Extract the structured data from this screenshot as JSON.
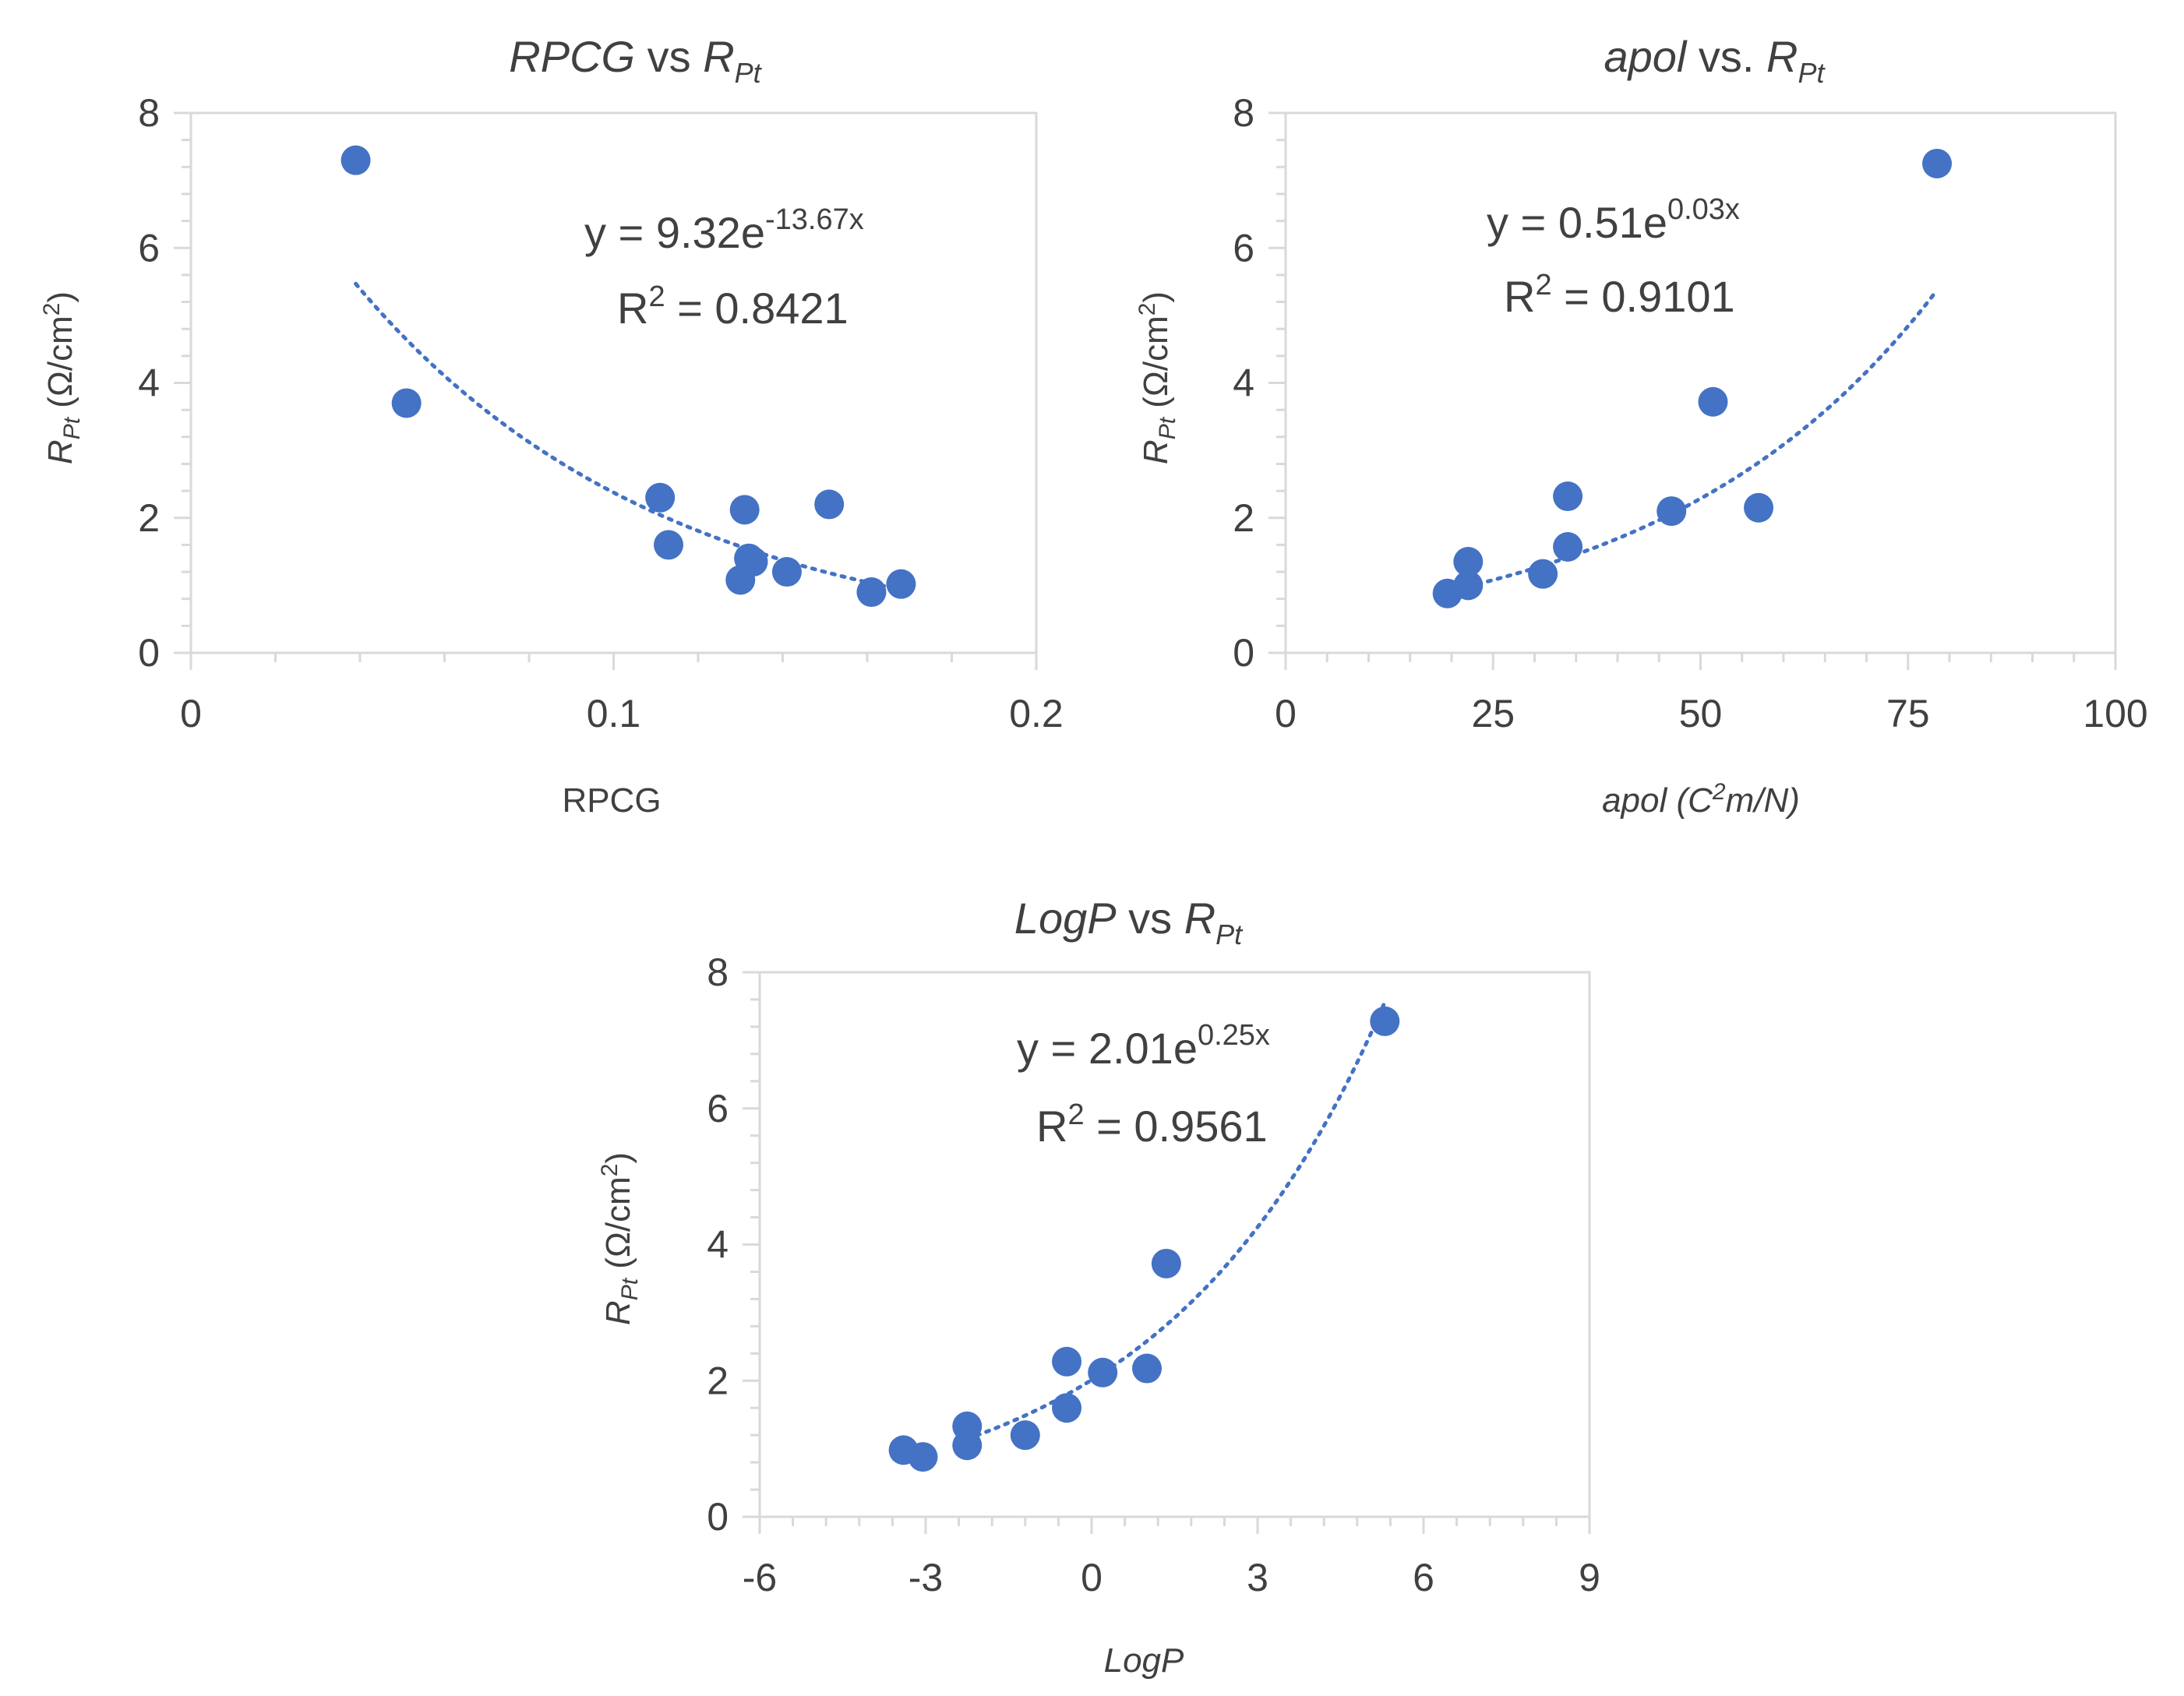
{
  "chart_data": [
    {
      "type": "scatter",
      "title": "RPCG vs R_Pt",
      "title_parts": {
        "a": "RPCG",
        "b": " vs ",
        "c": "R",
        "sub": "Pt"
      },
      "xlabel": "RPCG",
      "ylabel_parts": {
        "r": "R",
        "sub": "Pt",
        "unit": " (Ω/cm",
        "sup": "2",
        "close": ")"
      },
      "xlim": [
        0,
        0.2
      ],
      "ylim": [
        0,
        8
      ],
      "x_ticks": [
        "0",
        "0.1",
        "0.2"
      ],
      "y_ticks": [
        "0",
        "2",
        "4",
        "6",
        "8"
      ],
      "x_tick_values": [
        0,
        0.1,
        0.2
      ],
      "y_tick_values": [
        0,
        2,
        4,
        6,
        8
      ],
      "x": [
        0.039,
        0.051,
        0.111,
        0.113,
        0.13,
        0.131,
        0.132,
        0.133,
        0.141,
        0.151,
        0.161,
        0.168
      ],
      "y": [
        7.3,
        3.7,
        2.3,
        1.6,
        1.08,
        2.12,
        1.4,
        1.35,
        1.2,
        2.2,
        0.9,
        1.02
      ],
      "trendline": {
        "type": "exponential",
        "a": 9.32,
        "b": -13.67,
        "x_range": [
          0.039,
          0.168
        ]
      },
      "equation": {
        "base": "y = 9.32e",
        "exp": "-13.67x"
      },
      "r_squared": {
        "label": "R",
        "sup": "2",
        "value": " = 0.8421"
      }
    },
    {
      "type": "scatter",
      "title": "apol vs. R_Pt",
      "title_parts": {
        "a": "apol",
        "b": " vs. ",
        "c": "R",
        "sub": "Pt"
      },
      "xlabel_parts": {
        "a": "apol (C",
        "sup": "2",
        "b": "m/N)"
      },
      "ylabel_parts": {
        "r": "R",
        "sub": "Pt",
        "unit": " (Ω/cm",
        "sup": "2",
        "close": ")"
      },
      "xlim": [
        0,
        100
      ],
      "ylim": [
        0,
        8
      ],
      "x_ticks": [
        "0",
        "25",
        "50",
        "75",
        "100"
      ],
      "y_ticks": [
        "0",
        "2",
        "4",
        "6",
        "8"
      ],
      "x_tick_values": [
        0,
        25,
        50,
        75,
        100
      ],
      "y_tick_values": [
        0,
        2,
        4,
        6,
        8
      ],
      "x": [
        19.5,
        22,
        22,
        31,
        34,
        34,
        46.5,
        51.5,
        57,
        78.5
      ],
      "y": [
        0.88,
        1.35,
        1.0,
        1.17,
        2.32,
        1.57,
        2.1,
        3.72,
        2.15,
        7.25
      ],
      "trendline": {
        "type": "exponential",
        "a": 0.51,
        "b": 0.03,
        "x_range": [
          22,
          78.5
        ]
      },
      "equation": {
        "base": "y = 0.51e",
        "exp": "0.03x"
      },
      "r_squared": {
        "label": "R",
        "sup": "2",
        "value": " = 0.9101"
      }
    },
    {
      "type": "scatter",
      "title": "LogP vs R_Pt",
      "title_parts": {
        "a": "LogP",
        "b": " vs ",
        "c": "R",
        "sub": "Pt"
      },
      "xlabel": "LogP",
      "ylabel_parts": {
        "r": "R",
        "sub": "Pt",
        "unit": " (Ω/cm",
        "sup": "2",
        "close": ")"
      },
      "xlim": [
        -6,
        9
      ],
      "ylim": [
        0,
        8
      ],
      "x_ticks": [
        "-6",
        "-3",
        "0",
        "3",
        "6",
        "9"
      ],
      "y_ticks": [
        "0",
        "2",
        "4",
        "6",
        "8"
      ],
      "x_tick_values": [
        -6,
        -3,
        0,
        3,
        6,
        9
      ],
      "y_tick_values": [
        0,
        2,
        4,
        6,
        8
      ],
      "x": [
        -3.4,
        -3.05,
        -2.25,
        -2.25,
        -1.2,
        -0.45,
        -0.45,
        0.2,
        1.0,
        1.35,
        5.3
      ],
      "y": [
        0.98,
        0.88,
        1.33,
        1.05,
        1.2,
        2.28,
        1.6,
        2.12,
        2.18,
        3.72,
        7.28
      ],
      "trendline": {
        "type": "exponential",
        "a": 2.01,
        "b": 0.25,
        "x_range": [
          -2.25,
          5.3
        ]
      },
      "equation": {
        "base": "y = 2.01e",
        "exp": "0.25x"
      },
      "r_squared": {
        "label": "R",
        "sup": "2",
        "value": " = 0.9561"
      }
    }
  ],
  "colors": {
    "marker": "#4472C4",
    "trend": "#4472C4",
    "axis": "#D9D9D9",
    "text": "#404040"
  }
}
